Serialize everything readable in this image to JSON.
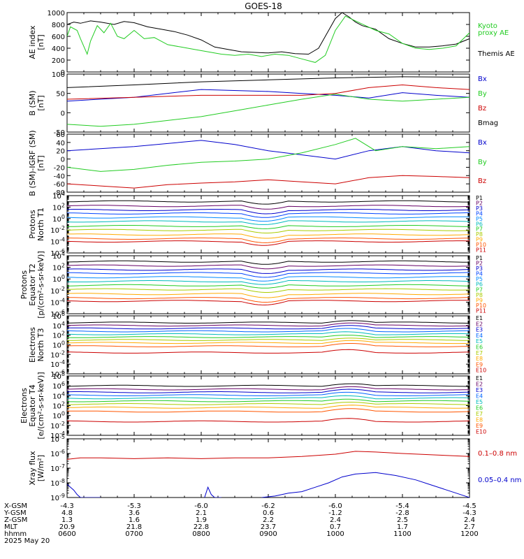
{
  "title": "GOES-18",
  "colors": {
    "black": "#000000",
    "green": "#22cc22",
    "blue": "#0000cc",
    "red": "#cc0000",
    "ae_proxy": "#22dd22"
  },
  "chart_data": [
    {
      "type": "line",
      "ylabel": [
        "AE index",
        "[nT]"
      ],
      "ylim": [
        0,
        1000
      ],
      "yticks": [
        "0",
        "200",
        "400",
        "600",
        "800",
        "1000"
      ],
      "legend": [
        {
          "text": "Kyoto",
          "color": "#22cc22"
        },
        {
          "text": "proxy AE",
          "color": "#22cc22"
        },
        {
          "text": "Themis AE",
          "color": "#000000"
        }
      ],
      "series": [
        {
          "color": "#000000",
          "x": [
            6.0,
            6.1,
            6.2,
            6.35,
            6.5,
            6.7,
            6.85,
            7.0,
            7.2,
            7.4,
            7.6,
            7.8,
            8.0,
            8.2,
            8.4,
            8.6,
            8.8,
            9.0,
            9.2,
            9.4,
            9.6,
            9.75,
            9.9,
            10.0,
            10.1,
            10.2,
            10.3,
            10.4,
            10.6,
            10.8,
            11.0,
            11.2,
            11.4,
            11.6,
            11.8,
            12.0
          ],
          "y": [
            800,
            840,
            820,
            860,
            840,
            800,
            850,
            830,
            760,
            720,
            680,
            620,
            540,
            420,
            380,
            340,
            330,
            320,
            340,
            310,
            300,
            400,
            700,
            900,
            1000,
            930,
            840,
            780,
            720,
            560,
            480,
            420,
            420,
            440,
            470,
            560
          ]
        },
        {
          "color": "#22cc22",
          "x": [
            6.0,
            6.05,
            6.15,
            6.2,
            6.3,
            6.35,
            6.45,
            6.55,
            6.65,
            6.75,
            6.85,
            7.0,
            7.15,
            7.3,
            7.5,
            7.7,
            7.9,
            8.1,
            8.3,
            8.5,
            8.7,
            8.9,
            9.1,
            9.3,
            9.5,
            9.7,
            9.85,
            10.0,
            10.15,
            10.3,
            10.45,
            10.6,
            10.8,
            11.0,
            11.2,
            11.4,
            11.6,
            11.8,
            12.0
          ],
          "y": [
            600,
            760,
            700,
            560,
            300,
            520,
            780,
            660,
            820,
            600,
            560,
            700,
            560,
            580,
            460,
            420,
            380,
            340,
            300,
            280,
            300,
            260,
            300,
            280,
            220,
            160,
            280,
            700,
            940,
            860,
            780,
            700,
            640,
            480,
            400,
            380,
            400,
            440,
            660
          ]
        }
      ]
    },
    {
      "type": "line",
      "ylabel": [
        "B (SM)",
        "[nT]"
      ],
      "ylim": [
        -50,
        100
      ],
      "yticks": [
        "-50",
        "0",
        "50",
        "100"
      ],
      "legend": [
        {
          "text": "Bx",
          "color": "#0000cc"
        },
        {
          "text": "By",
          "color": "#22cc22"
        },
        {
          "text": "Bz",
          "color": "#cc0000"
        },
        {
          "text": "Bmag",
          "color": "#000000"
        }
      ],
      "series": [
        {
          "color": "#000000",
          "x": [
            6,
            7,
            8,
            9,
            10,
            11,
            12
          ],
          "y": [
            65,
            72,
            80,
            85,
            90,
            93,
            92
          ]
        },
        {
          "color": "#0000cc",
          "x": [
            6,
            7,
            8,
            9,
            9.5,
            10,
            10.5,
            11,
            11.5,
            12
          ],
          "y": [
            30,
            40,
            60,
            55,
            50,
            45,
            38,
            52,
            45,
            40
          ]
        },
        {
          "color": "#22cc22",
          "x": [
            6,
            6.5,
            7,
            7.5,
            8,
            8.5,
            9,
            9.5,
            10,
            10.5,
            11,
            11.5,
            12
          ],
          "y": [
            -30,
            -35,
            -30,
            -20,
            -10,
            5,
            20,
            35,
            48,
            35,
            30,
            35,
            40
          ]
        },
        {
          "color": "#cc0000",
          "x": [
            6,
            7,
            8,
            9,
            9.5,
            10,
            10.5,
            11,
            11.5,
            12
          ],
          "y": [
            35,
            40,
            45,
            45,
            45,
            50,
            65,
            72,
            65,
            60
          ]
        }
      ]
    },
    {
      "type": "line",
      "ylabel": [
        "B (SM)-IGRF (SM)",
        "[nT]"
      ],
      "ylim": [
        -80,
        60
      ],
      "yticks": [
        "-80",
        "-60",
        "-40",
        "-20",
        "0",
        "20",
        "40",
        "60"
      ],
      "legend": [
        {
          "text": "Bx",
          "color": "#0000cc"
        },
        {
          "text": "By",
          "color": "#22cc22"
        },
        {
          "text": "Bz",
          "color": "#cc0000"
        }
      ],
      "series": [
        {
          "color": "#0000cc",
          "x": [
            6,
            7,
            8,
            8.5,
            9,
            9.5,
            10,
            10.5,
            11,
            11.5,
            12
          ],
          "y": [
            20,
            30,
            45,
            35,
            20,
            10,
            0,
            20,
            30,
            20,
            15
          ]
        },
        {
          "color": "#22cc22",
          "x": [
            6,
            6.5,
            7,
            7.5,
            8,
            8.5,
            9,
            9.5,
            10,
            10.3,
            10.6,
            11,
            11.5,
            12
          ],
          "y": [
            -20,
            -30,
            -25,
            -15,
            -8,
            -5,
            0,
            15,
            35,
            50,
            20,
            30,
            25,
            30
          ]
        },
        {
          "color": "#cc0000",
          "x": [
            6,
            6.5,
            7,
            7.5,
            8,
            8.5,
            9,
            9.5,
            10,
            10.5,
            11,
            11.5,
            12
          ],
          "y": [
            -60,
            -65,
            -70,
            -62,
            -58,
            -55,
            -50,
            -55,
            -60,
            -45,
            -40,
            -42,
            -45
          ]
        }
      ]
    },
    {
      "type": "line",
      "ylabel": [
        "Protons",
        "North T1"
      ],
      "scale": "log",
      "ylim": [
        -6,
        4
      ],
      "yticks": [
        "10^4",
        "10^2",
        "10^0",
        "10^-2",
        "10^-4",
        "10^-6"
      ],
      "channels": [
        {
          "name": "P1",
          "color": "#000000",
          "level": 3.0
        },
        {
          "name": "P2",
          "color": "#660066",
          "level": 2.2
        },
        {
          "name": "P3",
          "color": "#0000cc",
          "level": 1.5
        },
        {
          "name": "P4",
          "color": "#0044ff",
          "level": 0.9
        },
        {
          "name": "P5",
          "color": "#0088ff",
          "level": 0.2
        },
        {
          "name": "P6",
          "color": "#00bbbb",
          "level": -0.5
        },
        {
          "name": "P7",
          "color": "#22cc22",
          "level": -1.3
        },
        {
          "name": "P8",
          "color": "#aacc00",
          "level": -2.0
        },
        {
          "name": "P9",
          "color": "#ffaa00",
          "level": -2.8
        },
        {
          "name": "P10",
          "color": "#ff5500",
          "level": -3.5
        },
        {
          "name": "P11",
          "color": "#cc0000",
          "level": -4.0
        }
      ]
    },
    {
      "type": "line",
      "ylabel": [
        "Protons",
        "Equator T2",
        "[p/(cm²-s-sr-keV)]"
      ],
      "scale": "log",
      "ylim": [
        -6,
        4
      ],
      "yticks": [
        "10^4",
        "10^2",
        "10^0",
        "10^-2",
        "10^-4",
        "10^-6"
      ],
      "channels": [
        {
          "name": "P1",
          "color": "#000000",
          "level": 3.0
        },
        {
          "name": "P2",
          "color": "#660066",
          "level": 2.3
        },
        {
          "name": "P3",
          "color": "#0000cc",
          "level": 1.6
        },
        {
          "name": "P4",
          "color": "#0044ff",
          "level": 1.0
        },
        {
          "name": "P5",
          "color": "#0088ff",
          "level": 0.3
        },
        {
          "name": "P6",
          "color": "#00bbbb",
          "level": -0.4
        },
        {
          "name": "P7",
          "color": "#22cc22",
          "level": -1.1
        },
        {
          "name": "P8",
          "color": "#aacc00",
          "level": -1.8
        },
        {
          "name": "P9",
          "color": "#ffaa00",
          "level": -2.6
        },
        {
          "name": "P10",
          "color": "#ff5500",
          "level": -3.3
        },
        {
          "name": "P11",
          "color": "#cc0000",
          "level": -3.8
        }
      ]
    },
    {
      "type": "line",
      "ylabel": [
        "Electrons",
        "North T3"
      ],
      "scale": "log",
      "ylim": [
        -6,
        6
      ],
      "yticks": [
        "10^6",
        "10^4",
        "10^2",
        "10^0",
        "10^-2",
        "10^-4",
        "10^-6"
      ],
      "channels": [
        {
          "name": "E1",
          "color": "#000000",
          "level": 4.6
        },
        {
          "name": "E2",
          "color": "#660066",
          "level": 4.0
        },
        {
          "name": "E3",
          "color": "#0000cc",
          "level": 3.4
        },
        {
          "name": "E4",
          "color": "#0066ff",
          "level": 2.8
        },
        {
          "name": "E5",
          "color": "#00bbbb",
          "level": 2.2
        },
        {
          "name": "E6",
          "color": "#22cc22",
          "level": 1.6
        },
        {
          "name": "E7",
          "color": "#aacc00",
          "level": 1.0
        },
        {
          "name": "E8",
          "color": "#ffaa00",
          "level": 0.4
        },
        {
          "name": "E9",
          "color": "#ff5500",
          "level": -0.3
        },
        {
          "name": "E10",
          "color": "#cc0000",
          "level": -1.6
        }
      ]
    },
    {
      "type": "line",
      "ylabel": [
        "Electrons",
        "Equator T4",
        "[e/(cm²-s-sr-keV)]"
      ],
      "scale": "log",
      "ylim": [
        -4,
        8
      ],
      "yticks": [
        "10^8",
        "10^6",
        "10^4",
        "10^2",
        "10^0",
        "10^-2",
        "10^-4"
      ],
      "channels": [
        {
          "name": "E1",
          "color": "#000000",
          "level": 6.0
        },
        {
          "name": "E2",
          "color": "#660066",
          "level": 5.3
        },
        {
          "name": "E3",
          "color": "#0000cc",
          "level": 4.7
        },
        {
          "name": "E4",
          "color": "#0066ff",
          "level": 4.1
        },
        {
          "name": "E5",
          "color": "#00bbbb",
          "level": 3.5
        },
        {
          "name": "E6",
          "color": "#22cc22",
          "level": 2.9
        },
        {
          "name": "E7",
          "color": "#aacc00",
          "level": 2.3
        },
        {
          "name": "E8",
          "color": "#ffaa00",
          "level": 1.6
        },
        {
          "name": "E9",
          "color": "#ff5500",
          "level": 0.8
        },
        {
          "name": "E10",
          "color": "#cc0000",
          "level": -1.2
        }
      ]
    },
    {
      "type": "line",
      "ylabel": [
        "Xray flux",
        "[W/m²]"
      ],
      "scale": "log",
      "ylim": [
        -9,
        -5
      ],
      "yticks": [
        "10^-5",
        "10^-6",
        "10^-7",
        "10^-8",
        "10^-9"
      ],
      "legend": [
        {
          "text": "0.1–0.8 nm",
          "color": "#cc0000"
        },
        {
          "text": "0.05–0.4 nm",
          "color": "#0000cc"
        }
      ],
      "series": [
        {
          "color": "#cc0000",
          "x": [
            6,
            6.2,
            6.5,
            7,
            7.5,
            8,
            8.5,
            9,
            9.5,
            10,
            10.3,
            10.6,
            11,
            11.5,
            12
          ],
          "y": [
            -6.4,
            -6.3,
            -6.3,
            -6.35,
            -6.3,
            -6.35,
            -6.3,
            -6.3,
            -6.2,
            -6.05,
            -5.85,
            -5.9,
            -6.0,
            -6.1,
            -6.2
          ]
        },
        {
          "color": "#0000cc",
          "x": [
            6,
            6.05,
            6.1,
            6.15,
            6.2,
            6.3,
            6.4,
            6.5
          ],
          "y": [
            -8.1,
            -8.3,
            -8.5,
            -8.8,
            -9.0,
            -9.0,
            -9.0,
            -9.0
          ]
        },
        {
          "color": "#0000cc",
          "x": [
            8.05,
            8.1,
            8.15,
            8.2,
            8.3
          ],
          "y": [
            -9.0,
            -8.3,
            -8.8,
            -9.0,
            -9.0
          ]
        },
        {
          "color": "#0000cc",
          "x": [
            8.9,
            9.1,
            9.3,
            9.5,
            9.7,
            9.9,
            10.1,
            10.3,
            10.6,
            10.9,
            11.2,
            11.4,
            11.6,
            11.8,
            12.0
          ],
          "y": [
            -9.0,
            -8.9,
            -8.7,
            -8.6,
            -8.3,
            -8.0,
            -7.6,
            -7.4,
            -7.3,
            -7.5,
            -7.8,
            -8.1,
            -8.4,
            -8.7,
            -9.0
          ]
        }
      ]
    }
  ],
  "x_axis": {
    "range": [
      6,
      12
    ],
    "ticks": [
      6,
      7,
      8,
      9,
      10,
      11,
      12
    ],
    "rows": [
      {
        "label": "X-GSM",
        "values": [
          "-4.3",
          "-5.3",
          "-6.0",
          "-6.2",
          "-6.0",
          "-5.4",
          "-4.5"
        ]
      },
      {
        "label": "Y-GSM",
        "values": [
          "4.8",
          "3.6",
          "2.1",
          "0.6",
          "-1.2",
          "-2.8",
          "-4.3"
        ]
      },
      {
        "label": "Z-GSM",
        "values": [
          "1.3",
          "1.6",
          "1.9",
          "2.2",
          "2.4",
          "2.5",
          "2.4"
        ]
      },
      {
        "label": "MLT",
        "values": [
          "20.9",
          "21.8",
          "22.8",
          "23.7",
          "0.7",
          "1.7",
          "2.7"
        ]
      },
      {
        "label": "hhmm",
        "values": [
          "0600",
          "0700",
          "0800",
          "0900",
          "1000",
          "1100",
          "1200"
        ]
      }
    ],
    "date": "2025 May 20"
  }
}
